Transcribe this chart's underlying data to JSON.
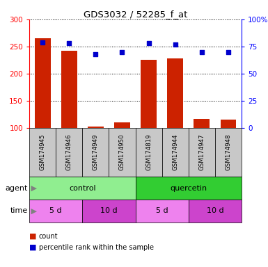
{
  "title": "GDS3032 / 52285_f_at",
  "samples": [
    "GSM174945",
    "GSM174946",
    "GSM174949",
    "GSM174950",
    "GSM174819",
    "GSM174944",
    "GSM174947",
    "GSM174948"
  ],
  "counts": [
    265,
    242,
    102,
    110,
    226,
    228,
    117,
    115
  ],
  "percentile_ranks": [
    79,
    78,
    68,
    70,
    78,
    77,
    70,
    70
  ],
  "ylim_left": [
    100,
    300
  ],
  "ylim_right": [
    0,
    100
  ],
  "yticks_left": [
    100,
    150,
    200,
    250,
    300
  ],
  "yticks_right": [
    0,
    25,
    50,
    75,
    100
  ],
  "agent_groups": [
    {
      "label": "control",
      "start": 0,
      "end": 4,
      "color": "#90EE90"
    },
    {
      "label": "quercetin",
      "start": 4,
      "end": 8,
      "color": "#32CD32"
    }
  ],
  "time_groups": [
    {
      "label": "5 d",
      "start": 0,
      "end": 2,
      "color": "#EE82EE"
    },
    {
      "label": "10 d",
      "start": 2,
      "end": 4,
      "color": "#CC44CC"
    },
    {
      "label": "5 d",
      "start": 4,
      "end": 6,
      "color": "#EE82EE"
    },
    {
      "label": "10 d",
      "start": 6,
      "end": 8,
      "color": "#CC44CC"
    }
  ],
  "bar_color": "#CC2200",
  "dot_color": "#0000CC",
  "background_label": "#C8C8C8",
  "left_label_color": "#CC0000",
  "right_label_color": "#0000CC"
}
